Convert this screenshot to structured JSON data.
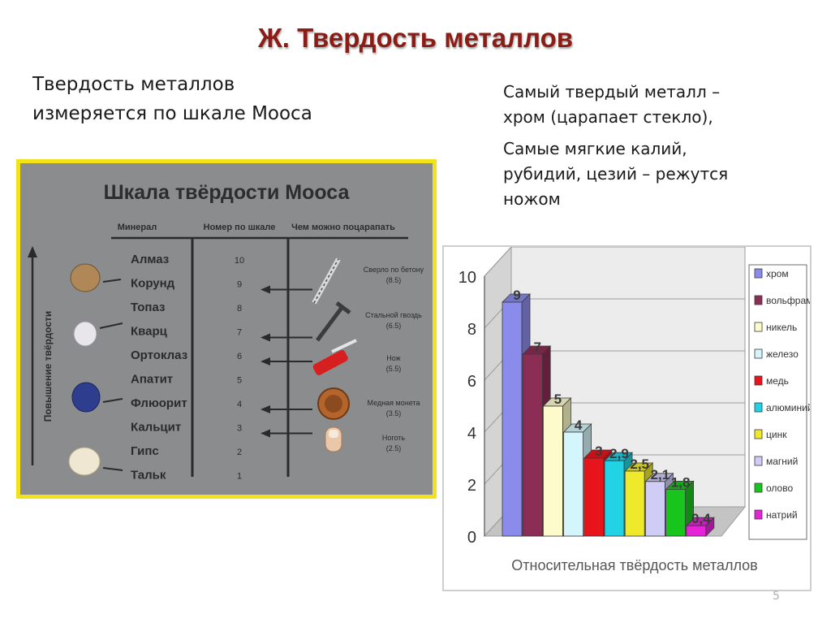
{
  "slide": {
    "title": "Ж. Твердость металлов",
    "left_text": [
      "Твердость металлов",
      "измеряется по шкале Мооса"
    ],
    "right_text": [
      "Самый твердый металл –",
      "хром (царапает стекло),",
      "Самые мягкие калий,",
      "рубидий, цезий – режутся",
      "ножом"
    ],
    "page_number": "5"
  },
  "mohs_scale": {
    "title": "Шкала твёрдости Мооса",
    "headers": {
      "mineral": "Минерал",
      "number": "Номер по шкале",
      "scratch": "Чем можно поцарапать"
    },
    "axis_label": "Повышение твёрдости",
    "rows": [
      {
        "mineral": "Алмаз",
        "number": "10"
      },
      {
        "mineral": "Корунд",
        "number": "9"
      },
      {
        "mineral": "Топаз",
        "number": "8"
      },
      {
        "mineral": "Кварц",
        "number": "7"
      },
      {
        "mineral": "Ортоклаз",
        "number": "6"
      },
      {
        "mineral": "Апатит",
        "number": "5"
      },
      {
        "mineral": "Флюорит",
        "number": "4"
      },
      {
        "mineral": "Кальцит",
        "number": "3"
      },
      {
        "mineral": "Гипс",
        "number": "2"
      },
      {
        "mineral": "Тальк",
        "number": "1"
      }
    ],
    "tools": [
      {
        "name": "Сверло по бетону",
        "value": "(8.5)",
        "icon": "drill-icon"
      },
      {
        "name": "Стальной гвоздь",
        "value": "(6.5)",
        "icon": "nail-icon"
      },
      {
        "name": "Нож",
        "value": "(5.5)",
        "icon": "knife-icon"
      },
      {
        "name": "Медная монета",
        "value": "(3.5)",
        "icon": "coin-icon"
      },
      {
        "name": "Ноготь",
        "value": "(2.5)",
        "icon": "fingernail-icon"
      }
    ],
    "colors": {
      "background": "#8a8c8e",
      "border": "#f2e21a"
    }
  },
  "chart_data": {
    "type": "bar",
    "title": "Относительная твёрдость металлов",
    "xlabel": "",
    "ylabel": "",
    "ylim": [
      0,
      10
    ],
    "yticks": [
      0,
      2,
      4,
      6,
      8,
      10
    ],
    "grid": true,
    "legend": "right",
    "categories": [
      "хром",
      "вольфрам",
      "никель",
      "железо",
      "медь",
      "алюминий",
      "цинк",
      "магний",
      "олово",
      "натрий"
    ],
    "values": [
      9,
      7,
      5,
      4,
      3,
      2.9,
      2.5,
      2.1,
      1.8,
      0.4
    ],
    "labels": [
      "9",
      "7",
      "5",
      "4",
      "3",
      "2,9",
      "2,5",
      "2,1",
      "1,8",
      "0,4"
    ],
    "colors": [
      "#8a8bea",
      "#8c2d55",
      "#fdfbcb",
      "#d3f5fb",
      "#e8141b",
      "#22d3e6",
      "#eee92a",
      "#cfcdf5",
      "#17c51c",
      "#e424d6"
    ]
  }
}
